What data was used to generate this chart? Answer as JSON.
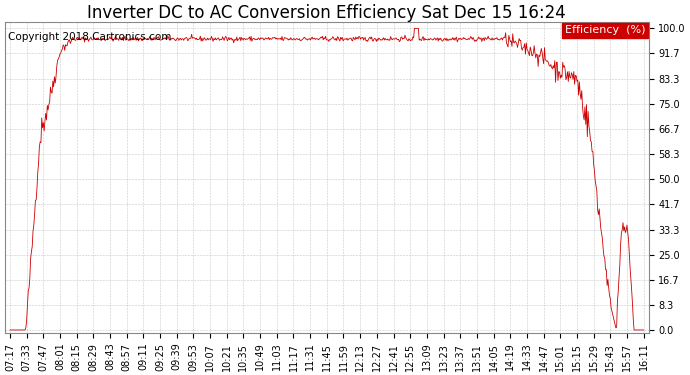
{
  "title": "Inverter DC to AC Conversion Efficiency Sat Dec 15 16:24",
  "copyright": "Copyright 2018 Cartronics.com",
  "legend_label": "Efficiency  (%)",
  "legend_bg": "#cc0000",
  "legend_text_color": "#ffffff",
  "line_color": "#cc0000",
  "background_color": "#ffffff",
  "grid_color": "#bbbbbb",
  "yticks": [
    0.0,
    8.3,
    16.7,
    25.0,
    33.3,
    41.7,
    50.0,
    58.3,
    66.7,
    75.0,
    83.3,
    91.7,
    100.0
  ],
  "ylim": [
    -1,
    102
  ],
  "xtick_labels": [
    "07:17",
    "07:33",
    "07:47",
    "08:01",
    "08:15",
    "08:29",
    "08:43",
    "08:57",
    "09:11",
    "09:25",
    "09:39",
    "09:53",
    "10:07",
    "10:21",
    "10:35",
    "10:49",
    "11:03",
    "11:17",
    "11:31",
    "11:45",
    "11:59",
    "12:13",
    "12:27",
    "12:41",
    "12:55",
    "13:09",
    "13:23",
    "13:37",
    "13:51",
    "14:05",
    "14:19",
    "14:33",
    "14:47",
    "15:01",
    "15:15",
    "15:29",
    "15:43",
    "15:57",
    "16:11"
  ],
  "title_fontsize": 12,
  "tick_fontsize": 7,
  "copyright_fontsize": 7.5
}
